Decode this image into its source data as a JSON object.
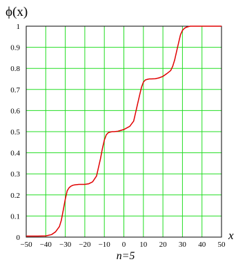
{
  "chart_data": {
    "type": "line",
    "ylabel": "ϕ(x)",
    "xlabel": "x",
    "caption": "n=5",
    "xlim": [
      -50,
      50
    ],
    "ylim": [
      0,
      1
    ],
    "x_ticks": [
      -50,
      -40,
      -30,
      -20,
      -10,
      0,
      10,
      20,
      30,
      40,
      50
    ],
    "x_tick_labels": [
      "−50",
      "−40",
      "−30",
      "−20",
      "−10",
      "0",
      "10",
      "20",
      "30",
      "40",
      "50"
    ],
    "y_ticks": [
      0,
      0.1,
      0.2,
      0.3,
      0.4,
      0.5,
      0.6,
      0.7,
      0.8,
      0.9,
      1
    ],
    "y_tick_labels": [
      "0",
      "0.1",
      "0.2",
      "0.3",
      "0.4",
      "0.5",
      "0.6",
      "0.7",
      "0.8",
      "0.9",
      "1"
    ],
    "grid": true,
    "series": [
      {
        "color": "#e00000",
        "x": [
          -50,
          -44,
          -40,
          -37,
          -35,
          -33,
          -32,
          -31,
          -30,
          -29,
          -28,
          -27,
          -26,
          -25,
          -23,
          -20,
          -18,
          -16,
          -14,
          -13,
          -12,
          -11,
          -10,
          -9,
          -8,
          -7,
          -6,
          -5,
          -3,
          0,
          3,
          5,
          6,
          7,
          8,
          9,
          10,
          11,
          12,
          13,
          14,
          16,
          18,
          20,
          22,
          24,
          25,
          26,
          27,
          28,
          29,
          30,
          31,
          32,
          33,
          34,
          36,
          40,
          44,
          50
        ],
        "y": [
          0.005,
          0.005,
          0.006,
          0.012,
          0.025,
          0.05,
          0.08,
          0.13,
          0.18,
          0.22,
          0.235,
          0.242,
          0.246,
          0.248,
          0.25,
          0.25,
          0.253,
          0.262,
          0.29,
          0.33,
          0.37,
          0.42,
          0.46,
          0.485,
          0.495,
          0.498,
          0.5,
          0.5,
          0.502,
          0.51,
          0.525,
          0.55,
          0.59,
          0.63,
          0.67,
          0.71,
          0.735,
          0.745,
          0.748,
          0.75,
          0.75,
          0.751,
          0.755,
          0.762,
          0.775,
          0.79,
          0.81,
          0.84,
          0.88,
          0.92,
          0.96,
          0.98,
          0.99,
          0.995,
          0.998,
          1.0,
          1.0,
          1.0,
          1.0,
          1.0
        ]
      }
    ]
  }
}
